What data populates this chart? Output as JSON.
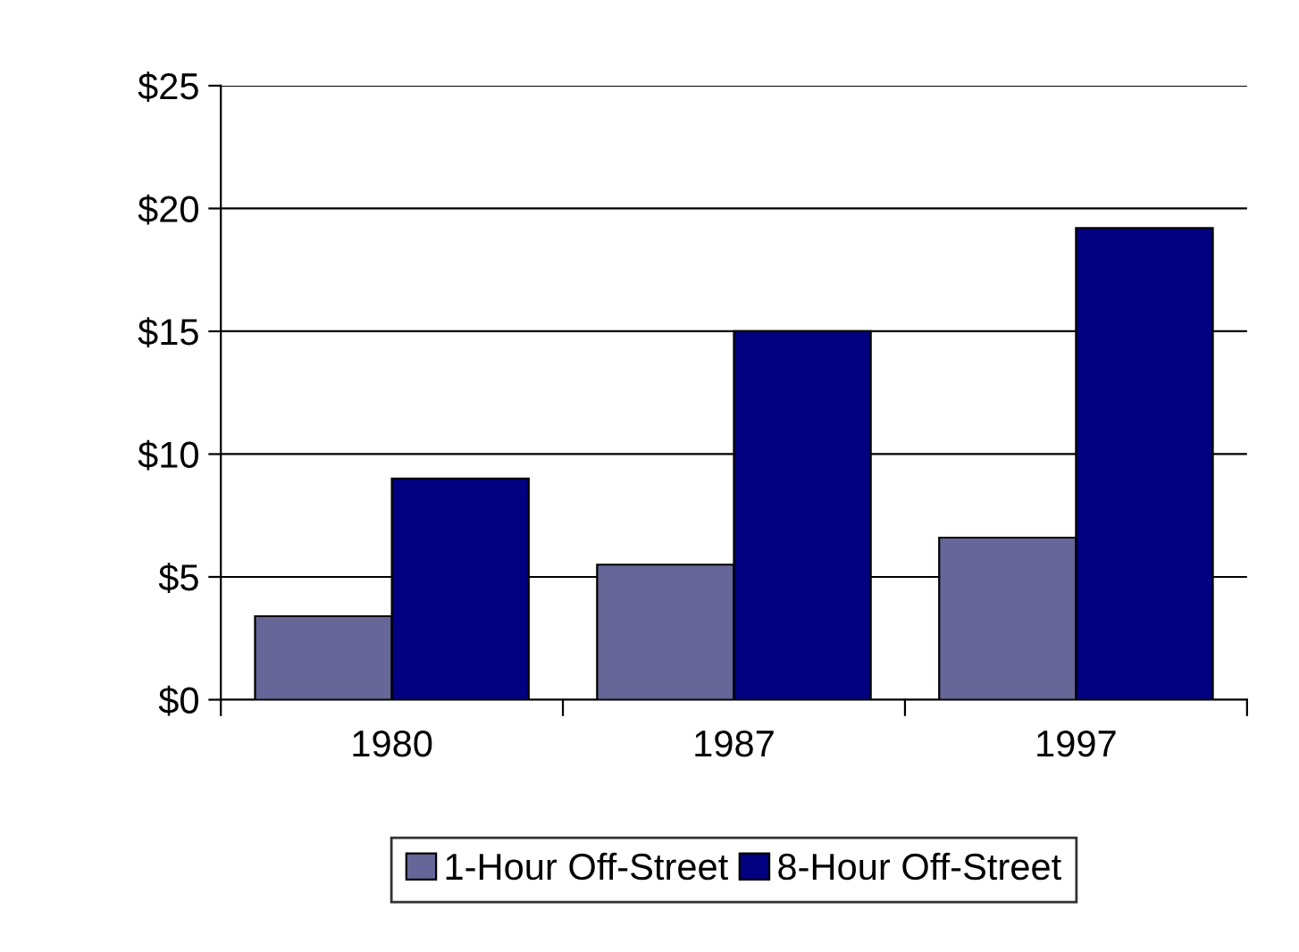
{
  "chart_data": {
    "type": "bar",
    "categories": [
      "1980",
      "1987",
      "1997"
    ],
    "series": [
      {
        "name": "1-Hour Off-Street",
        "color": "#666699",
        "values": [
          3.4,
          5.5,
          6.6
        ]
      },
      {
        "name": "8-Hour Off-Street",
        "color": "#000080",
        "values": [
          9.0,
          15.0,
          19.2
        ]
      }
    ],
    "ylim": [
      0,
      25
    ],
    "yticks": [
      {
        "value": 0,
        "label": "$0"
      },
      {
        "value": 5,
        "label": "$5"
      },
      {
        "value": 10,
        "label": "$10"
      },
      {
        "value": 15,
        "label": "$15"
      },
      {
        "value": 20,
        "label": "$20"
      },
      {
        "value": 25,
        "label": "$25"
      }
    ],
    "grid": "y",
    "legend": "bottom"
  }
}
